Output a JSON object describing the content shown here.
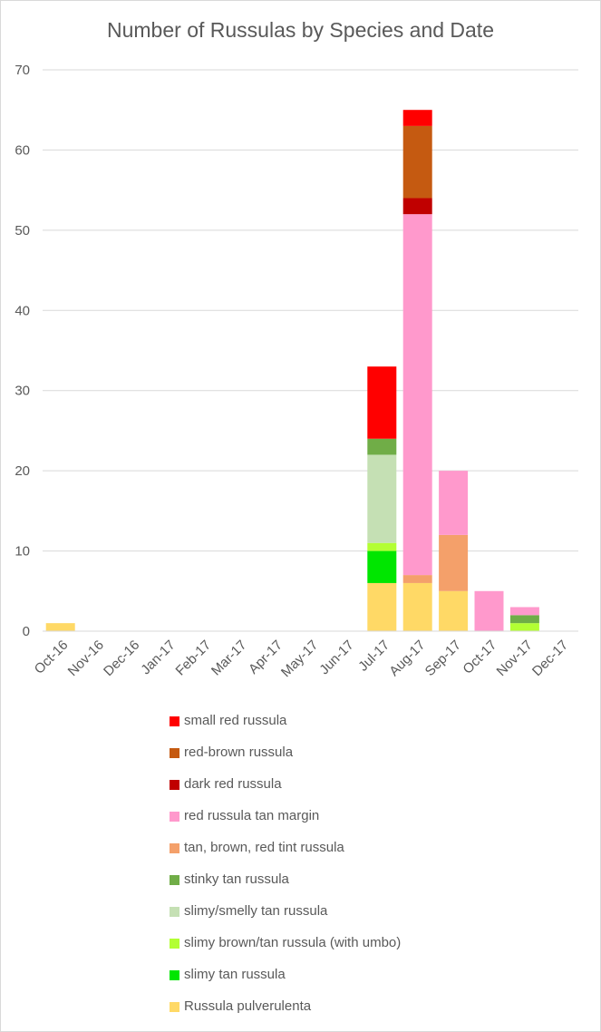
{
  "chart_data": {
    "type": "bar",
    "stacked": true,
    "title": "Number of Russulas by Species and Date",
    "xlabel": "",
    "ylabel": "",
    "ylim": [
      0,
      70
    ],
    "yticks": [
      "0",
      "10",
      "20",
      "30",
      "40",
      "50",
      "60",
      "70"
    ],
    "grid": true,
    "legend_position": "bottom",
    "categories": [
      "Oct-16",
      "Nov-16",
      "Dec-16",
      "Jan-17",
      "Feb-17",
      "Mar-17",
      "Apr-17",
      "May-17",
      "Jun-17",
      "Jul-17",
      "Aug-17",
      "Sep-17",
      "Oct-17",
      "Nov-17",
      "Dec-17"
    ],
    "series": [
      {
        "name": "Russula pulverulenta",
        "color": "#FFD966",
        "values": [
          1,
          0,
          0,
          0,
          0,
          0,
          0,
          0,
          0,
          6,
          6,
          5,
          0,
          0,
          0
        ]
      },
      {
        "name": "slimy tan russula",
        "color": "#00E600",
        "values": [
          0,
          0,
          0,
          0,
          0,
          0,
          0,
          0,
          0,
          4,
          0,
          0,
          0,
          0,
          0
        ]
      },
      {
        "name": "slimy brown/tan russula (with umbo)",
        "color": "#B3FF33",
        "values": [
          0,
          0,
          0,
          0,
          0,
          0,
          0,
          0,
          0,
          1,
          0,
          0,
          0,
          1,
          0
        ]
      },
      {
        "name": "slimy/smelly tan russula",
        "color": "#C5E0B4",
        "values": [
          0,
          0,
          0,
          0,
          0,
          0,
          0,
          0,
          0,
          11,
          0,
          0,
          0,
          0,
          0
        ]
      },
      {
        "name": "stinky tan russula",
        "color": "#70AD47",
        "values": [
          0,
          0,
          0,
          0,
          0,
          0,
          0,
          0,
          0,
          2,
          0,
          0,
          0,
          1,
          0
        ]
      },
      {
        "name": "tan, brown, red tint russula",
        "color": "#F4A06A",
        "values": [
          0,
          0,
          0,
          0,
          0,
          0,
          0,
          0,
          0,
          0,
          1,
          7,
          0,
          0,
          0
        ]
      },
      {
        "name": "red russula tan margin",
        "color": "#FF99CC",
        "values": [
          0,
          0,
          0,
          0,
          0,
          0,
          0,
          0,
          0,
          0,
          45,
          8,
          5,
          1,
          0
        ]
      },
      {
        "name": "dark red russula",
        "color": "#C00000",
        "values": [
          0,
          0,
          0,
          0,
          0,
          0,
          0,
          0,
          0,
          0,
          2,
          0,
          0,
          0,
          0
        ]
      },
      {
        "name": "red-brown russula",
        "color": "#C55A11",
        "values": [
          0,
          0,
          0,
          0,
          0,
          0,
          0,
          0,
          0,
          0,
          9,
          0,
          0,
          0,
          0
        ]
      },
      {
        "name": "small red russula",
        "color": "#FF0000",
        "values": [
          0,
          0,
          0,
          0,
          0,
          0,
          0,
          0,
          0,
          9,
          2,
          0,
          0,
          0,
          0
        ]
      }
    ]
  }
}
